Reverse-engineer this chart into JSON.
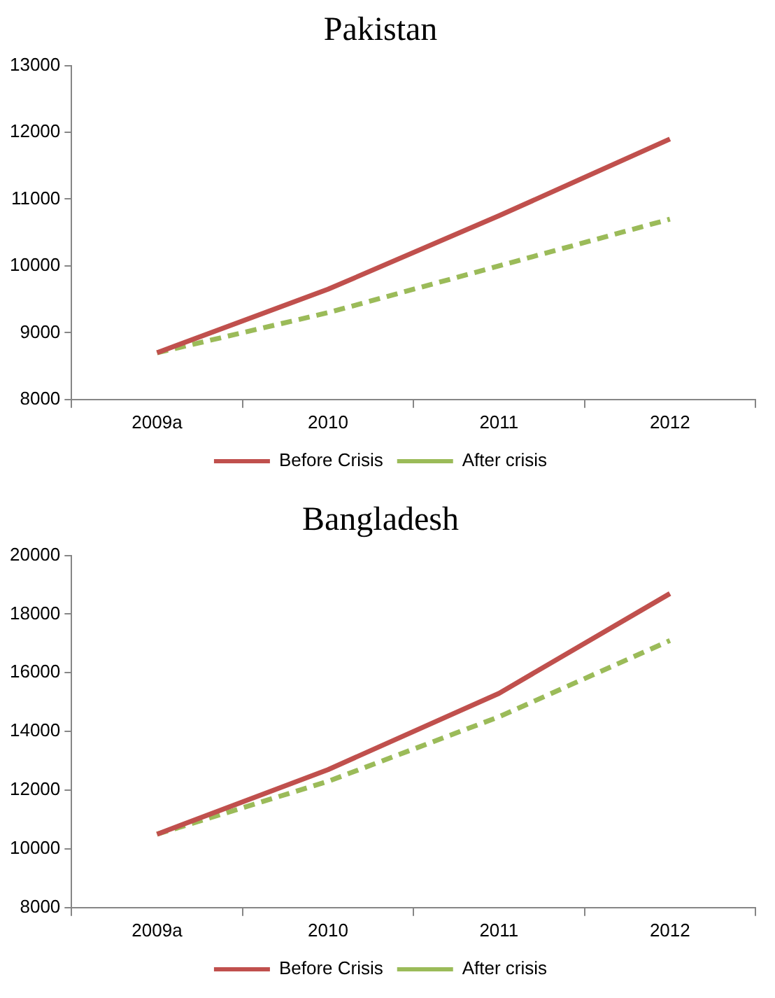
{
  "chart_data": [
    {
      "type": "line",
      "title": "Pakistan",
      "categories": [
        "2009a",
        "2010",
        "2011",
        "2012"
      ],
      "series": [
        {
          "name": "Before Crisis",
          "color": "#c0504d",
          "line_style": "solid",
          "values": [
            8700,
            9650,
            10750,
            11900
          ]
        },
        {
          "name": "After crisis",
          "color": "#9bbb59",
          "line_style": "dashed",
          "values": [
            8700,
            9300,
            10000,
            10700
          ]
        }
      ],
      "ylim": [
        8000,
        13000
      ],
      "yticks": [
        8000,
        9000,
        10000,
        11000,
        12000,
        13000
      ],
      "grid": false,
      "legend": "bottom",
      "marker": "none"
    },
    {
      "type": "line",
      "title": "Bangladesh",
      "categories": [
        "2009a",
        "2010",
        "2011",
        "2012"
      ],
      "series": [
        {
          "name": "Before Crisis",
          "color": "#c0504d",
          "line_style": "solid",
          "values": [
            10500,
            12700,
            15300,
            18700
          ]
        },
        {
          "name": "After crisis",
          "color": "#9bbb59",
          "line_style": "dashed",
          "values": [
            10500,
            12300,
            14500,
            17100
          ]
        }
      ],
      "ylim": [
        8000,
        20000
      ],
      "yticks": [
        8000,
        10000,
        12000,
        14000,
        16000,
        18000,
        20000
      ],
      "grid": false,
      "legend": "bottom",
      "marker": "none"
    }
  ]
}
